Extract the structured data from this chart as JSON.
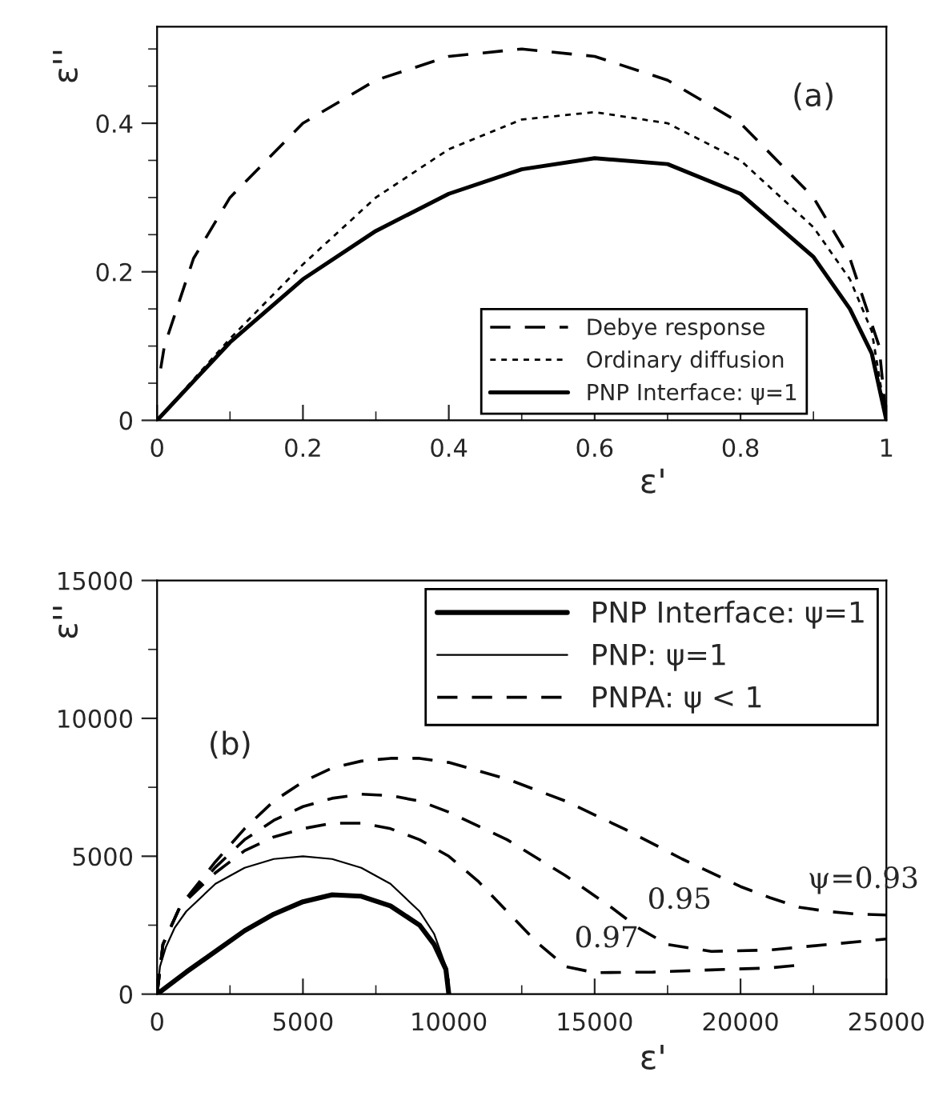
{
  "chart_data": [
    {
      "type": "line",
      "xlabel": "ε'",
      "ylabel": "ε''",
      "annotations": [
        "(a)"
      ],
      "legend": "bottom right",
      "grid": false,
      "xlim": [
        0,
        1
      ],
      "ylim": [
        0,
        0.53
      ],
      "xticks": [
        0,
        {
          "value": 0.1,
          "label": null
        },
        0.2,
        {
          "value": 0.3,
          "label": null
        },
        0.4,
        {
          "value": 0.5,
          "label": null
        },
        0.6,
        {
          "value": 0.7,
          "label": null
        },
        0.8,
        {
          "value": 0.9,
          "label": null
        },
        1
      ],
      "yticks": [
        0,
        {
          "value": 0.05,
          "label": null
        },
        {
          "value": 0.1,
          "label": null
        },
        {
          "value": 0.15,
          "label": null
        },
        0.2,
        {
          "value": 0.25,
          "label": null
        },
        {
          "value": 0.3,
          "label": null
        },
        {
          "value": 0.35,
          "label": null
        },
        0.4,
        {
          "value": 0.45,
          "label": null
        },
        {
          "value": 0.5,
          "label": null
        }
      ],
      "series": [
        {
          "name": "Debye response",
          "color": "#000000",
          "line_style": "dashed",
          "x": [
            0.005,
            0.01,
            0.05,
            0.1,
            0.2,
            0.3,
            0.4,
            0.5,
            0.6,
            0.7,
            0.8,
            0.9,
            0.95,
            0.99,
            1
          ],
          "values": [
            0.07,
            0.1,
            0.218,
            0.3,
            0.4,
            0.458,
            0.49,
            0.5,
            0.49,
            0.458,
            0.4,
            0.3,
            0.218,
            0.1,
            0
          ]
        },
        {
          "name": "Ordinary diffusion",
          "color": "#000000",
          "line_style": "dotted",
          "x": [
            0,
            0.1,
            0.2,
            0.3,
            0.4,
            0.5,
            0.6,
            0.7,
            0.8,
            0.9,
            0.95,
            0.98,
            1
          ],
          "values": [
            0,
            0.11,
            0.21,
            0.3,
            0.365,
            0.405,
            0.415,
            0.4,
            0.35,
            0.26,
            0.19,
            0.12,
            0
          ]
        },
        {
          "name": "PNP Interface: ψ=1",
          "color": "#000000",
          "line_style": "solid",
          "x": [
            0,
            0.1,
            0.2,
            0.3,
            0.4,
            0.5,
            0.6,
            0.7,
            0.8,
            0.9,
            0.95,
            0.98,
            1
          ],
          "values": [
            0,
            0.105,
            0.19,
            0.255,
            0.305,
            0.338,
            0.353,
            0.345,
            0.305,
            0.22,
            0.15,
            0.09,
            0
          ]
        }
      ]
    },
    {
      "type": "line",
      "xlabel": "ε'",
      "ylabel": "ε''",
      "legend": "top right",
      "grid": false,
      "annotations": [
        "(b)",
        {
          "text": "ψ=0.93",
          "x": 22000,
          "y": 3150
        },
        {
          "text": "0.95",
          "x": 16500,
          "y": 2400
        },
        {
          "text": "0.97",
          "x": 14000,
          "y": 1000
        }
      ],
      "xlim": [
        0,
        25000
      ],
      "ylim": [
        0,
        15000
      ],
      "xticks": [
        0,
        {
          "value": 2500,
          "label": null
        },
        5000,
        {
          "value": 7500,
          "label": null
        },
        10000,
        {
          "value": 12500,
          "label": null
        },
        15000,
        {
          "value": 17500,
          "label": null
        },
        20000,
        {
          "value": 22500,
          "label": null
        },
        25000
      ],
      "yticks": [
        0,
        {
          "value": 2500,
          "label": null
        },
        5000,
        {
          "value": 7500,
          "label": null
        },
        10000,
        {
          "value": 12500,
          "label": null
        },
        15000
      ],
      "series": [
        {
          "name": "PNP Interface: ψ=1",
          "color": "#000000",
          "line_style": "solid",
          "x": [
            0,
            1000,
            2000,
            3000,
            4000,
            5000,
            6000,
            7000,
            8000,
            9000,
            9500,
            9900,
            10000
          ],
          "values": [
            0,
            800,
            1550,
            2300,
            2900,
            3350,
            3600,
            3550,
            3200,
            2500,
            1800,
            900,
            0
          ]
        },
        {
          "name": "PNP: ψ=1",
          "color": "#000000",
          "line_style": "solid",
          "x": [
            0,
            100,
            300,
            600,
            1000,
            2000,
            3000,
            4000,
            5000,
            6000,
            7000,
            8000,
            9000,
            9500,
            9900,
            10000
          ],
          "values": [
            0,
            1000,
            1700,
            2400,
            3000,
            4000,
            4580,
            4900,
            5000,
            4900,
            4580,
            4000,
            3000,
            2180,
            1000,
            0
          ]
        },
        {
          "name": "PNPA: ψ < 1",
          "color": "#000000",
          "line_style": "dashed",
          "x": [
            0,
            200,
            800,
            2000,
            3000,
            4000,
            5000,
            6000,
            7000,
            8000,
            9000,
            10000,
            12000,
            14000,
            16000,
            18000,
            20000,
            21000,
            22000,
            23000,
            24000,
            25000
          ],
          "values": [
            0,
            1800,
            3200,
            4800,
            6000,
            7000,
            7700,
            8200,
            8450,
            8550,
            8550,
            8400,
            7800,
            7000,
            6000,
            4900,
            3900,
            3500,
            3150,
            3000,
            2900,
            2870
          ]
        },
        {
          "color": "#000000",
          "line_style": "dashed",
          "x": [
            0,
            200,
            800,
            2000,
            3000,
            4000,
            5000,
            6000,
            7000,
            8000,
            9000,
            10000,
            12000,
            14000,
            15500,
            16500,
            17500,
            19000,
            21000,
            23000,
            25000
          ],
          "values": [
            0,
            1800,
            3200,
            4600,
            5600,
            6300,
            6800,
            7100,
            7250,
            7200,
            7000,
            6600,
            5600,
            4300,
            3200,
            2400,
            1800,
            1550,
            1600,
            1800,
            2000
          ]
        },
        {
          "color": "#000000",
          "line_style": "dashed",
          "x": [
            0,
            200,
            800,
            2000,
            3000,
            4000,
            5000,
            6000,
            7000,
            8000,
            9000,
            10000,
            11000,
            12000,
            13000,
            14000,
            15000,
            17000,
            19000,
            21000,
            22000
          ],
          "values": [
            0,
            1800,
            3200,
            4400,
            5200,
            5700,
            6000,
            6200,
            6200,
            6000,
            5600,
            5000,
            4100,
            3000,
            1900,
            1000,
            780,
            800,
            880,
            950,
            1050
          ]
        }
      ]
    }
  ]
}
